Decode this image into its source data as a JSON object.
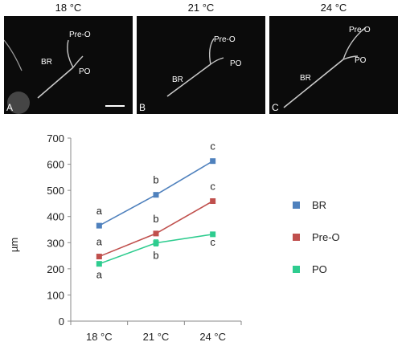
{
  "panels": [
    {
      "temperature": "18 °C",
      "letter": "A",
      "labels": {
        "preo": "Pre-O",
        "br": "BR",
        "po": "PO"
      }
    },
    {
      "temperature": "21 °C",
      "letter": "B",
      "labels": {
        "preo": "Pre-O",
        "br": "BR",
        "po": "PO"
      }
    },
    {
      "temperature": "24 °C",
      "letter": "C",
      "labels": {
        "preo": "Pre-O",
        "br": "BR",
        "po": "PO"
      }
    }
  ],
  "colors": {
    "BR": "#4f81bd",
    "Pre-O": "#c0504d",
    "PO": "#2ecc8f"
  },
  "chart_data": {
    "type": "line",
    "categories": [
      "18 °C",
      "21 °C",
      "24 °C"
    ],
    "ylabel": "µm",
    "xlabel": "",
    "title": "",
    "ylim": [
      0,
      700
    ],
    "yticks": [
      "0",
      "100",
      "200",
      "300",
      "400",
      "500",
      "600",
      "700"
    ],
    "grid": false,
    "legend_position": "right",
    "series": [
      {
        "name": "BR",
        "values": [
          365,
          483,
          612
        ],
        "errors": [
          5,
          6,
          6
        ],
        "sig": [
          "a",
          "b",
          "c"
        ]
      },
      {
        "name": "Pre-O",
        "values": [
          247,
          335,
          459
        ],
        "errors": [
          8,
          8,
          6
        ],
        "sig": [
          "a",
          "b",
          "c"
        ]
      },
      {
        "name": "PO",
        "values": [
          219,
          299,
          332
        ],
        "errors": [
          6,
          12,
          6
        ],
        "sig": [
          "a",
          "b",
          "c"
        ]
      }
    ]
  }
}
